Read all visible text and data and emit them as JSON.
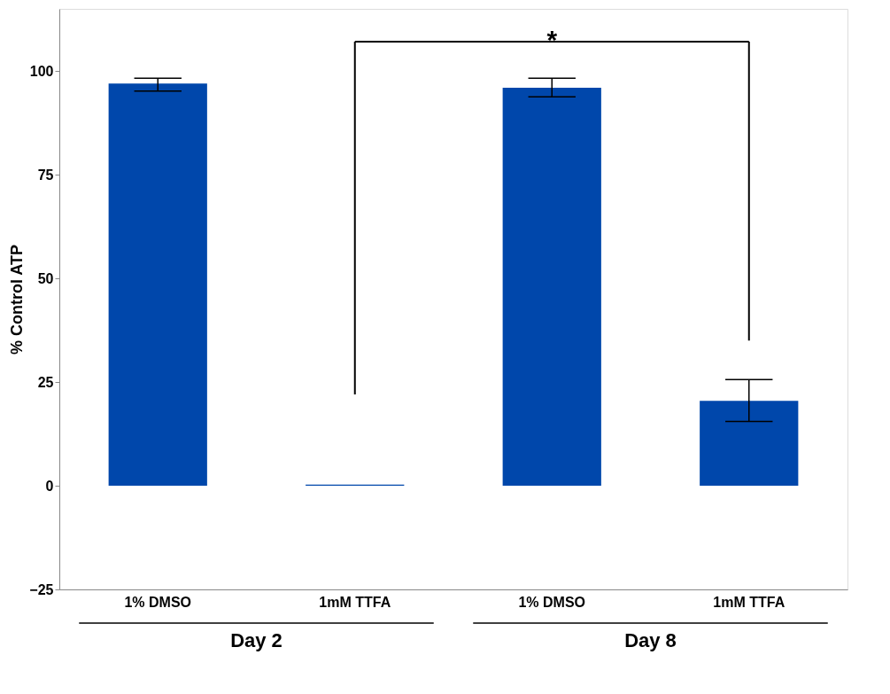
{
  "chart_data": {
    "type": "bar",
    "ylabel": "% Control ATP",
    "categories": [
      "1% DMSO",
      "1mM TTFA",
      "1% DMSO",
      "1mM TTFA"
    ],
    "values": [
      97,
      0.3,
      96,
      20.5
    ],
    "errors": [
      [
        95.2,
        98.3
      ],
      null,
      [
        93.8,
        98.3
      ],
      [
        15.5,
        25.6
      ]
    ],
    "color": "#0047ab",
    "ylim": [
      -25,
      115
    ],
    "yticks": [
      -25,
      0,
      25,
      50,
      75,
      100
    ],
    "grid": false,
    "annotations": [
      "*",
      "Day 2",
      "Day 8"
    ]
  }
}
